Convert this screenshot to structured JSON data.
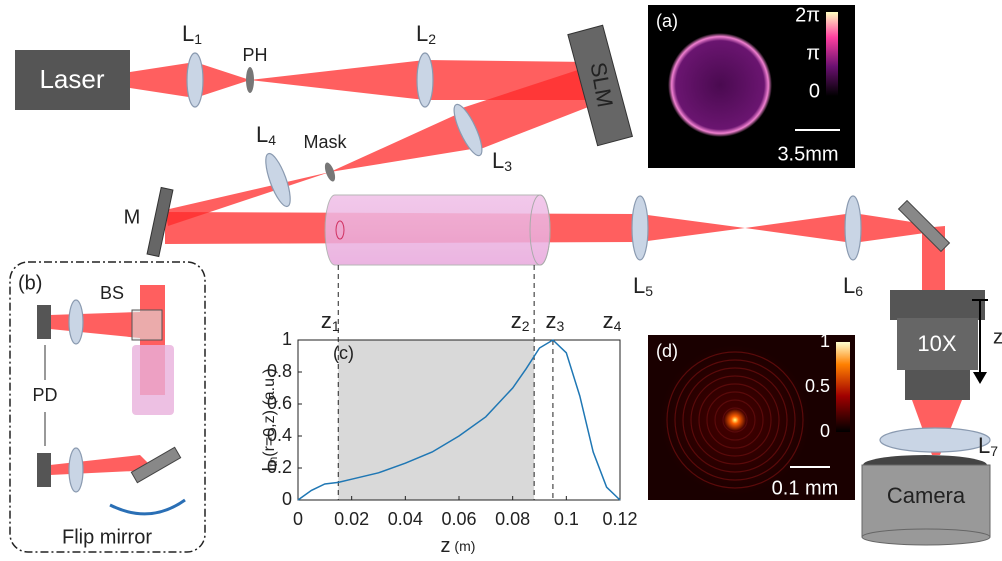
{
  "components": {
    "laser": "Laser",
    "lenses": [
      {
        "text": "L",
        "sub": "1"
      },
      {
        "text": "L",
        "sub": "2"
      },
      {
        "text": "L",
        "sub": "3"
      },
      {
        "text": "L",
        "sub": "4"
      },
      {
        "text": "L",
        "sub": "5"
      },
      {
        "text": "L",
        "sub": "6"
      },
      {
        "text": "L",
        "sub": "7"
      }
    ],
    "pinhole": "PH",
    "slm": "SLM",
    "mask": "Mask",
    "mirror": "M",
    "objective": "10X",
    "camera": "Camera",
    "z_axis": "z"
  },
  "inset_a": {
    "label": "(a)",
    "colorbar_ticks": [
      "2π",
      "π",
      "0"
    ],
    "scale": "3.5mm"
  },
  "inset_b": {
    "label": "(b)",
    "bs": "BS",
    "pd": "PD",
    "flip": "Flip mirror"
  },
  "inset_d": {
    "label": "(d)",
    "clim": [
      0,
      1
    ],
    "colorbar_ticks": [
      1,
      0.5,
      0
    ],
    "scale": "0.1 mm"
  },
  "chart_data": {
    "type": "line",
    "label": "(c)",
    "ylabel": {
      "text": "I",
      "sub": "th",
      "rest": "(r=0,z) (a.u.)"
    },
    "xlabel": {
      "text": "z",
      "unit": " (m)"
    },
    "xlim": [
      0,
      0.12
    ],
    "ylim": [
      0,
      1
    ],
    "xticks": [
      0,
      0.02,
      0.04,
      0.06,
      0.08,
      0.1,
      0.12
    ],
    "yticks": [
      0,
      0.2,
      0.4,
      0.6,
      0.8,
      1
    ],
    "color": "#1f77b4",
    "shade": [
      0.015,
      0.088
    ],
    "markers": [
      {
        "text": "z",
        "sub": "1",
        "x": 0.015
      },
      {
        "text": "z",
        "sub": "2",
        "x": 0.088
      },
      {
        "text": "z",
        "sub": "3",
        "x": 0.095
      },
      {
        "text": "z",
        "sub": "4",
        "x": 0.12
      }
    ],
    "x": [
      0,
      0.005,
      0.01,
      0.015,
      0.02,
      0.03,
      0.04,
      0.05,
      0.06,
      0.07,
      0.08,
      0.085,
      0.09,
      0.095,
      0.1,
      0.105,
      0.11,
      0.115,
      0.12
    ],
    "values": [
      0,
      0.06,
      0.1,
      0.11,
      0.13,
      0.17,
      0.23,
      0.3,
      0.4,
      0.52,
      0.7,
      0.82,
      0.95,
      1.0,
      0.92,
      0.65,
      0.3,
      0.08,
      0
    ]
  }
}
